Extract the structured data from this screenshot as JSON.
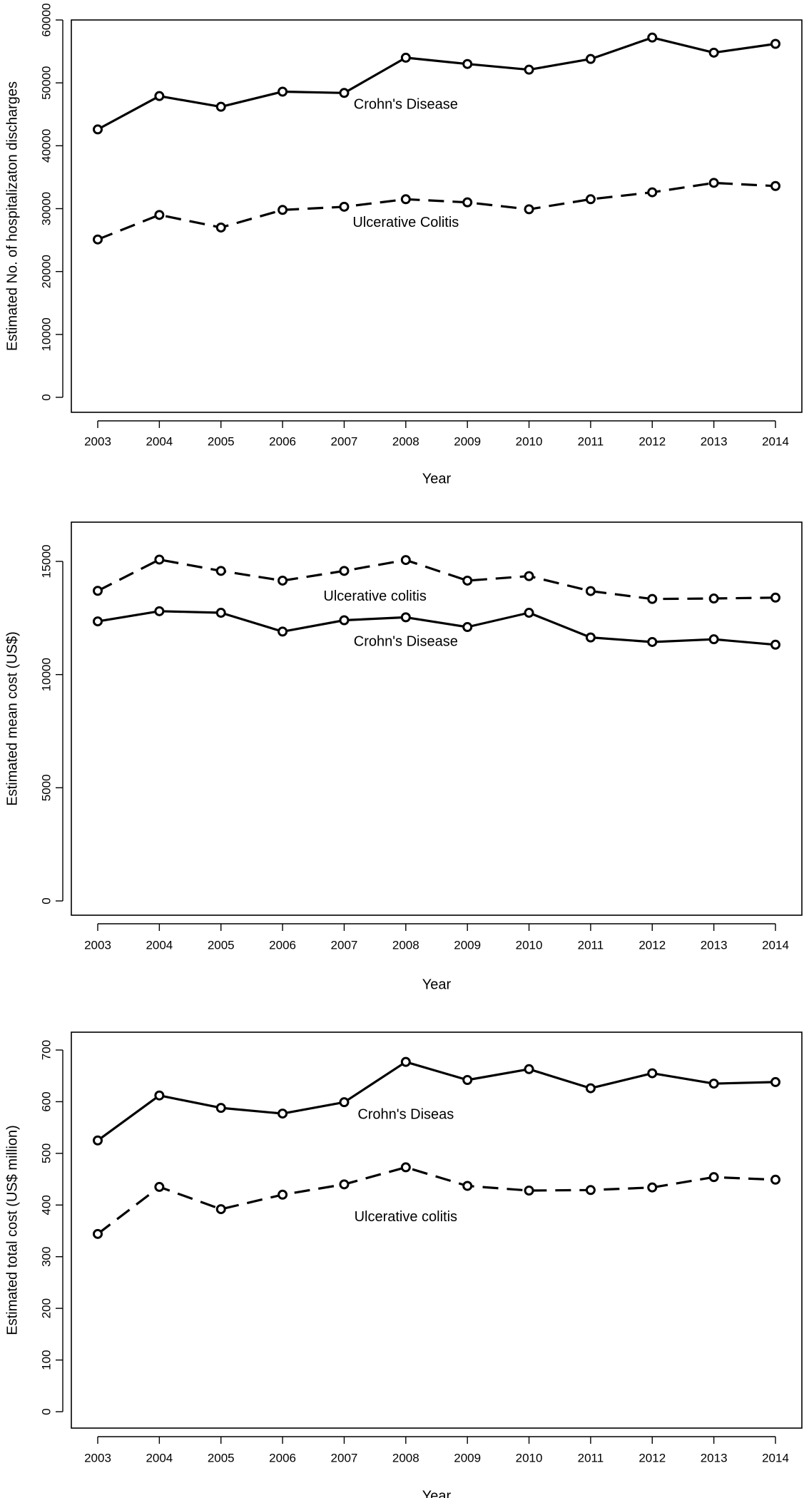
{
  "chart_data": [
    {
      "type": "line",
      "x": [
        2003,
        2004,
        2005,
        2006,
        2007,
        2008,
        2009,
        2010,
        2011,
        2012,
        2013,
        2014
      ],
      "ylim": [
        0,
        60000
      ],
      "yticks": [
        0,
        10000,
        20000,
        30000,
        40000,
        50000,
        60000
      ],
      "xlabel": "Year",
      "ylabel": "Estimated No. of hospitalizaton discharges",
      "grid": false,
      "series": [
        {
          "name": "Crohn's Disease",
          "style": "solid",
          "values": [
            42600,
            47900,
            46200,
            48600,
            48400,
            54000,
            53000,
            52100,
            53800,
            57200,
            54800,
            56200
          ],
          "label_at": {
            "x": 2008,
            "y": 46500
          }
        },
        {
          "name": "Ulcerative Colitis",
          "style": "dashed",
          "values": [
            25100,
            29000,
            27000,
            29800,
            30300,
            31500,
            31000,
            29900,
            31500,
            32600,
            34100,
            33600
          ],
          "label_at": {
            "x": 2008,
            "y": 27700
          }
        }
      ]
    },
    {
      "type": "line",
      "x": [
        2003,
        2004,
        2005,
        2006,
        2007,
        2008,
        2009,
        2010,
        2011,
        2012,
        2013,
        2014
      ],
      "ylim": [
        0,
        15000
      ],
      "yticks": [
        0,
        5000,
        10000,
        15000
      ],
      "xlabel": "Year",
      "ylabel": "Estimated mean cost (US$)",
      "grid": false,
      "series": [
        {
          "name": "Crohn's Disease",
          "style": "solid",
          "values": [
            12350,
            12800,
            12730,
            11900,
            12400,
            12530,
            12100,
            12730,
            11640,
            11440,
            11560,
            11320
          ],
          "label_at": {
            "x": 2008,
            "y": 11430
          }
        },
        {
          "name": "Ulcerative colitis",
          "style": "dashed",
          "values": [
            13700,
            15080,
            14580,
            14150,
            14580,
            15060,
            14150,
            14350,
            13690,
            13340,
            13360,
            13400
          ],
          "label_at": {
            "x": 2007.5,
            "y": 13440
          }
        }
      ]
    },
    {
      "type": "line",
      "x": [
        2003,
        2004,
        2005,
        2006,
        2007,
        2008,
        2009,
        2010,
        2011,
        2012,
        2013,
        2014
      ],
      "ylim": [
        0,
        700
      ],
      "yticks": [
        0,
        100,
        200,
        300,
        400,
        500,
        600,
        700
      ],
      "xlabel": "Year",
      "ylabel": "Estimated total cost (US$ million)",
      "grid": false,
      "series": [
        {
          "name": "Crohn's Diseas",
          "style": "solid",
          "values": [
            525,
            612,
            588,
            577,
            599,
            677,
            642,
            663,
            626,
            655,
            635,
            638
          ],
          "label_at": {
            "x": 2008,
            "y": 574
          }
        },
        {
          "name": "Ulcerative colitis",
          "style": "dashed",
          "values": [
            344,
            435,
            392,
            420,
            440,
            473,
            437,
            428,
            429,
            434,
            454,
            449
          ],
          "label_at": {
            "x": 2008,
            "y": 376
          }
        }
      ]
    }
  ]
}
